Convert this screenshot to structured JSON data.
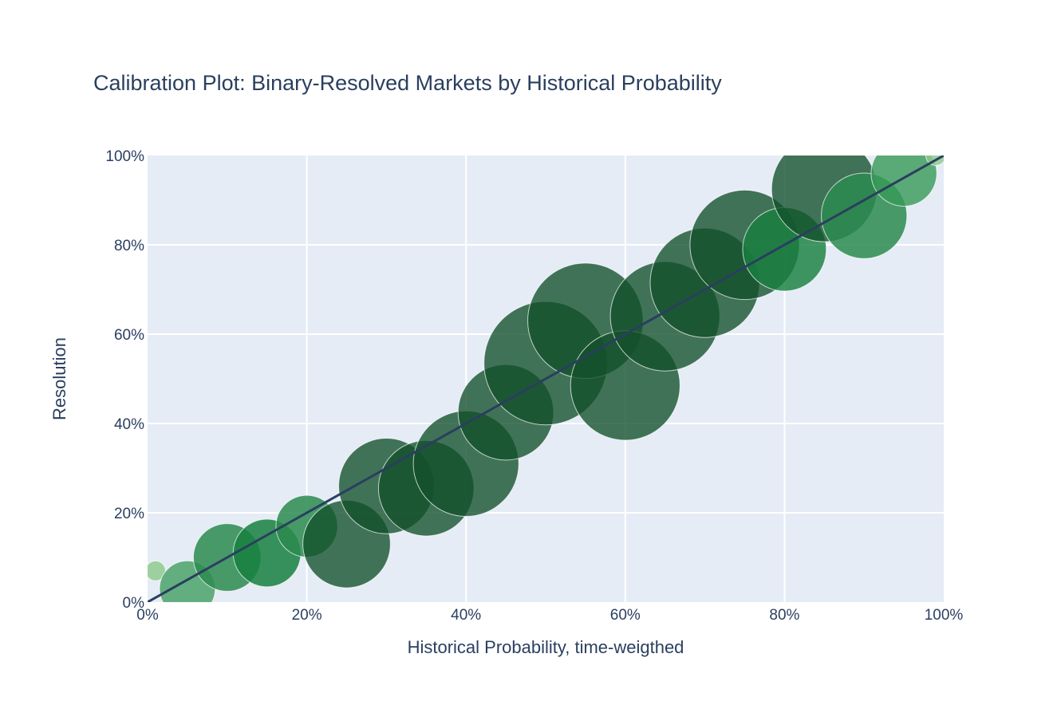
{
  "chart_data": {
    "type": "scatter",
    "title": "Calibration Plot: Binary-Resolved Markets by Historical Probability",
    "xlabel": "Historical Probability, time-weigthed",
    "ylabel": "Resolution",
    "xlim": [
      0,
      1
    ],
    "ylim": [
      0,
      1
    ],
    "x_ticks": [
      "0%",
      "20%",
      "40%",
      "60%",
      "80%",
      "100%"
    ],
    "y_ticks": [
      "0%",
      "20%",
      "40%",
      "60%",
      "80%",
      "100%"
    ],
    "grid": true,
    "plot_background": "#e5ecf6",
    "reference_line": {
      "from": [
        0,
        0
      ],
      "to": [
        1,
        1
      ],
      "color": "#2a3f5f"
    },
    "series": [
      {
        "marker": "bubble",
        "points": [
          {
            "x": 0.01,
            "y": 0.07,
            "size": 0.1,
            "color": "#8fcb8f",
            "opacity": 0.85
          },
          {
            "x": 0.05,
            "y": 0.03,
            "size": 0.28,
            "color": "#379a57",
            "opacity": 0.75
          },
          {
            "x": 0.1,
            "y": 0.1,
            "size": 0.34,
            "color": "#2b8b4f",
            "opacity": 0.85
          },
          {
            "x": 0.15,
            "y": 0.11,
            "size": 0.34,
            "color": "#18803f",
            "opacity": 0.85
          },
          {
            "x": 0.2,
            "y": 0.17,
            "size": 0.31,
            "color": "#2b8b4f",
            "opacity": 0.85
          },
          {
            "x": 0.25,
            "y": 0.13,
            "size": 0.44,
            "color": "#124f2a",
            "opacity": 0.78
          },
          {
            "x": 0.3,
            "y": 0.26,
            "size": 0.48,
            "color": "#124f2a",
            "opacity": 0.78
          },
          {
            "x": 0.35,
            "y": 0.255,
            "size": 0.48,
            "color": "#124f2a",
            "opacity": 0.78
          },
          {
            "x": 0.4,
            "y": 0.31,
            "size": 0.53,
            "color": "#124f2a",
            "opacity": 0.78
          },
          {
            "x": 0.45,
            "y": 0.425,
            "size": 0.48,
            "color": "#124f2a",
            "opacity": 0.78
          },
          {
            "x": 0.5,
            "y": 0.535,
            "size": 0.62,
            "color": "#124f2a",
            "opacity": 0.78
          },
          {
            "x": 0.55,
            "y": 0.63,
            "size": 0.58,
            "color": "#124f2a",
            "opacity": 0.78
          },
          {
            "x": 0.6,
            "y": 0.485,
            "size": 0.55,
            "color": "#124f2a",
            "opacity": 0.78
          },
          {
            "x": 0.65,
            "y": 0.64,
            "size": 0.55,
            "color": "#124f2a",
            "opacity": 0.78
          },
          {
            "x": 0.7,
            "y": 0.715,
            "size": 0.55,
            "color": "#124f2a",
            "opacity": 0.78
          },
          {
            "x": 0.75,
            "y": 0.8,
            "size": 0.55,
            "color": "#124f2a",
            "opacity": 0.78
          },
          {
            "x": 0.8,
            "y": 0.79,
            "size": 0.42,
            "color": "#18803f",
            "opacity": 0.82
          },
          {
            "x": 0.85,
            "y": 0.925,
            "size": 0.53,
            "color": "#124f2a",
            "opacity": 0.78
          },
          {
            "x": 0.9,
            "y": 0.865,
            "size": 0.43,
            "color": "#2b8b4f",
            "opacity": 0.85
          },
          {
            "x": 0.95,
            "y": 0.96,
            "size": 0.33,
            "color": "#379a57",
            "opacity": 0.8
          },
          {
            "x": 0.99,
            "y": 1.0,
            "size": 0.1,
            "color": "#8fcb8f",
            "opacity": 0.8
          }
        ]
      }
    ]
  }
}
